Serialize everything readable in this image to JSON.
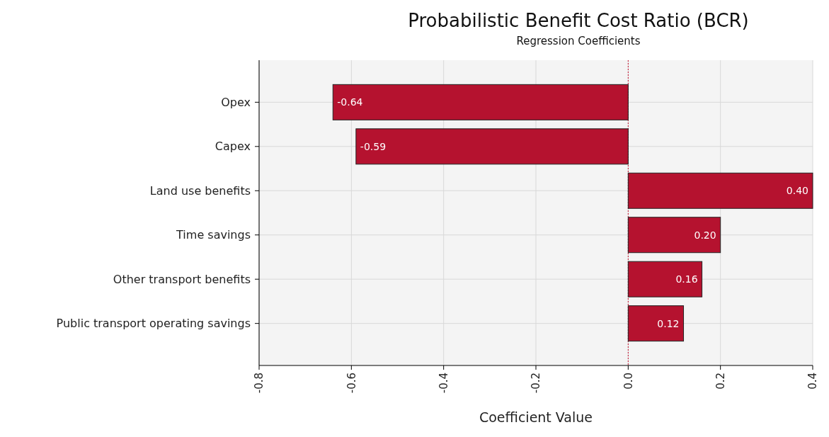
{
  "chart_data": {
    "type": "bar",
    "orientation": "horizontal",
    "title": "Probabilistic Benefit Cost Ratio (BCR)",
    "subtitle": "Regression Coefficients",
    "xlabel": "Coefficient Value",
    "categories": [
      "Opex",
      "Capex",
      "Land use benefits",
      "Time savings",
      "Other transport benefits",
      "Public transport operating savings"
    ],
    "values": [
      -0.64,
      -0.59,
      0.4,
      0.2,
      0.16,
      0.12
    ],
    "value_labels": [
      "-0.64",
      "-0.59",
      "0.40",
      "0.20",
      "0.16",
      "0.12"
    ],
    "color": "#b5122f",
    "xlim": [
      -0.8,
      0.4
    ],
    "xticks": [
      -0.8,
      -0.6,
      -0.4,
      -0.2,
      {
        "value": 0,
        "label": "0.0"
      },
      0.2,
      0.4
    ],
    "grid": true,
    "ref_lines": [
      {
        "axis": "x",
        "value": 0,
        "color": "#c8102e",
        "line_style": "dotted"
      }
    ]
  }
}
